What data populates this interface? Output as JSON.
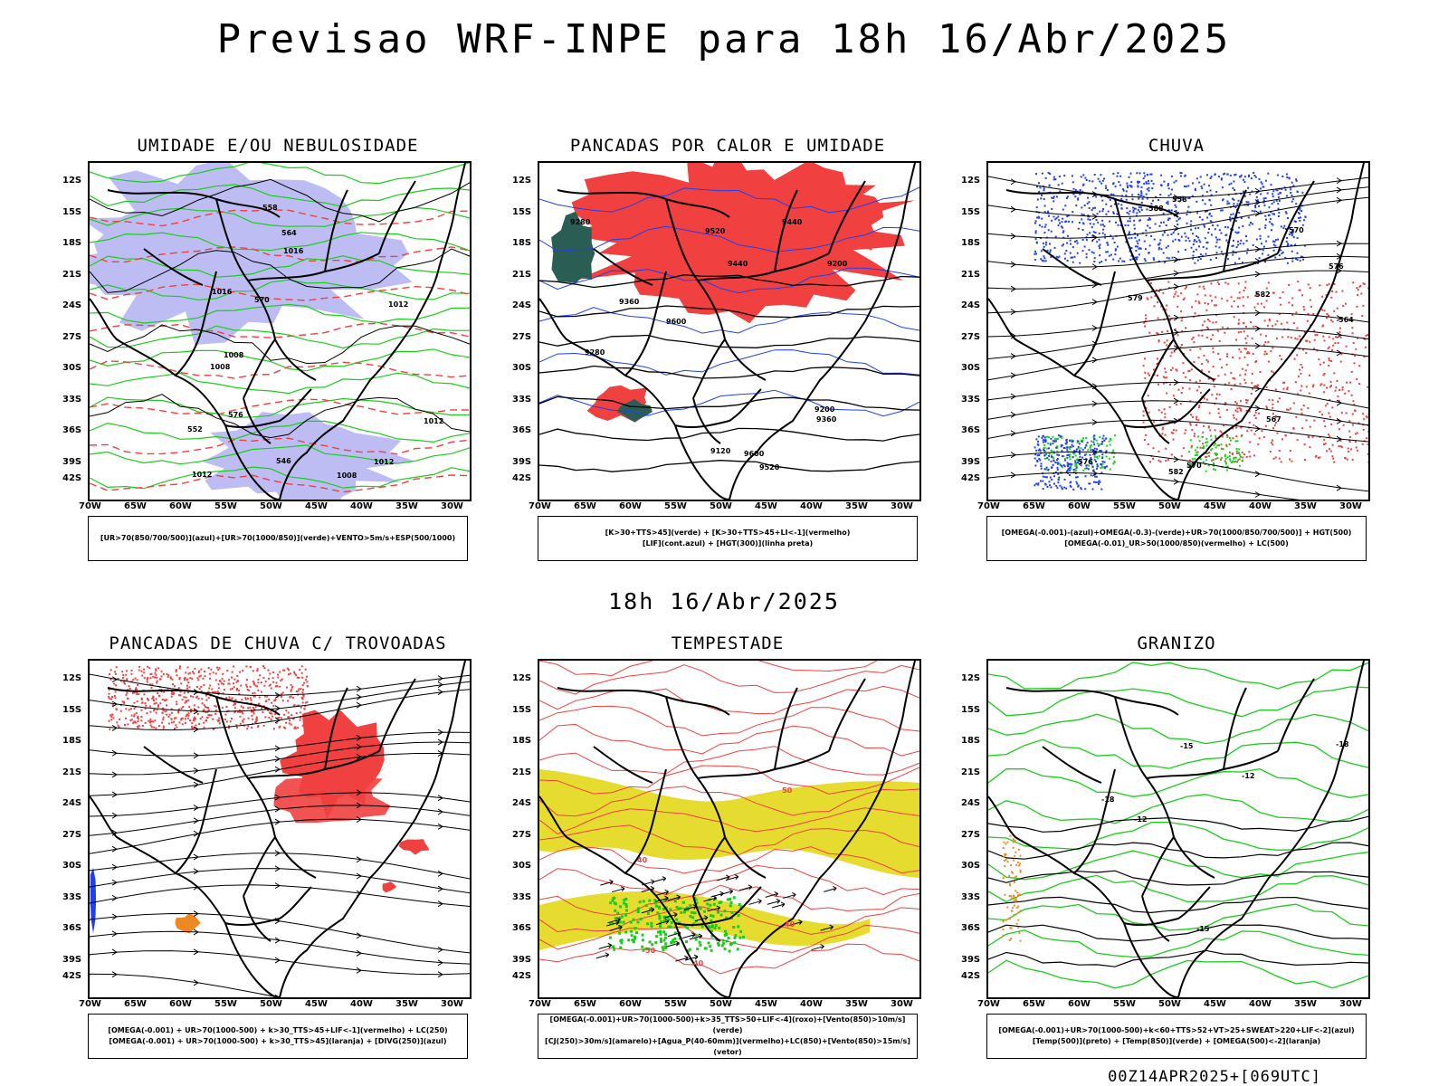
{
  "title": "Previsao WRF-INPE  para 18h 16/Abr/2025",
  "mid_title": "18h 16/Abr/2025",
  "footer": "00Z14APR2025+[069UTC]",
  "lat_labels": [
    "12S",
    "15S",
    "18S",
    "21S",
    "24S",
    "27S",
    "30S",
    "33S",
    "36S",
    "39S",
    "42S"
  ],
  "lon_labels": [
    "70W",
    "65W",
    "60W",
    "55W",
    "50W",
    "45W",
    "40W",
    "35W",
    "30W"
  ],
  "colors": {
    "blue_shade": "#a7a7f0",
    "green": "#1ccc1c",
    "red": "#f04040",
    "dark_teal": "#2a5e55",
    "yellow": "#e6dc30",
    "orange": "#ee8822",
    "blue": "#2040ee"
  },
  "panels": [
    {
      "id": "umidade",
      "title": "UMIDADE E/OU NEBULOSIDADE",
      "legend": [
        "[UR>70(850/700/500)](azul)+[UR>70(1000/850)](verde)+VENTO>5m/s+ESP(500/1000)"
      ],
      "contour_labels": [
        "1008",
        "1008",
        "1012",
        "1008",
        "1012",
        "1016",
        "1012",
        "1012",
        "1016",
        "570",
        "576",
        "564",
        "558",
        "552",
        "546"
      ]
    },
    {
      "id": "pancadas-calor",
      "title": "PANCADAS POR CALOR E UMIDADE",
      "legend": [
        "[K>30+TTS>45](verde) + [K>30+TTS>45+LI<-1](vermelho)",
        "[LIF](cont.azul) + [HGT(300)](linha preta)"
      ],
      "contour_labels": [
        "9600",
        "9520",
        "9440",
        "9360",
        "9280",
        "9200",
        "9120",
        "9520",
        "9600",
        "9440",
        "9360",
        "9280",
        "9200"
      ]
    },
    {
      "id": "chuva",
      "title": "CHUVA",
      "legend": [
        "[OMEGA(-0.001)-(azul)+OMEGA(-0.3)-(verde)+UR>70(1000/850/700/500)] + HGT(500)",
        "[OMEGA(-0.01)_UR>50(1000/850)(vermelho) + LC(500)"
      ],
      "contour_labels": [
        "588",
        "582",
        "576",
        "570",
        "564",
        "558",
        "576",
        "570",
        "567",
        "582",
        "579"
      ]
    },
    {
      "id": "trovoadas",
      "title": "PANCADAS DE CHUVA C/ TROVOADAS",
      "legend": [
        "[OMEGA(-0.001) + UR>70(1000-500) + k>30_TTS>45+LIF<-1](vermelho) + LC(250)",
        "[OMEGA(-0.001) + UR>70(1000-500) + k>30_TTS>45](laranja) + [DIVG(250)](azul)"
      ],
      "contour_labels": []
    },
    {
      "id": "tempestade",
      "title": "TEMPESTADE",
      "legend": [
        "[OMEGA(-0.001)+UR>70(1000-500)+k>35_TTS>50+LIF<-4](roxo)+[Vento(850)>10m/s](verde)",
        "[CJ(250)>30m/s](amarelo)+[Agua_P(40-60mm)](vermelho)+LC(850)+[Vento(850)>15m/s](vetor)"
      ],
      "contour_labels": [
        "50",
        "40",
        "40",
        "50",
        "40"
      ]
    },
    {
      "id": "granizo",
      "title": "GRANIZO",
      "legend": [
        "[OMEGA(-0.001)+UR>70(1000-500)+k<60+TTS>52+VT>25+SWEAT>220+LIF<-2](azul)",
        "[Temp(500)](preto) + [Temp(850)](verde) + [OMEGA(500)<-2](laranja)"
      ],
      "contour_labels": [
        "-12",
        "-15",
        "-18",
        "-18",
        "-15",
        "-12"
      ]
    }
  ]
}
